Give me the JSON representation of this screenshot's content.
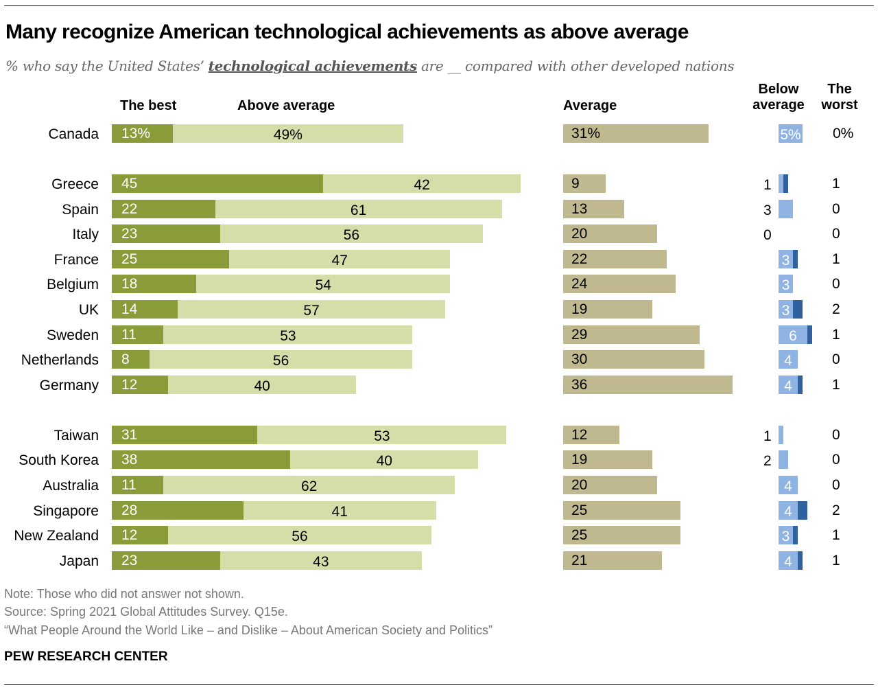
{
  "title": "Many recognize American technological achievements as above average",
  "subtitle": {
    "prefix": "% who say the United States’ ",
    "emphasis": "technological achievements",
    "suffix": " are __ compared with other developed nations"
  },
  "colors": {
    "best": "#8a9c3a",
    "above": "#d5dea8",
    "average": "#c0b98f",
    "below": "#8fb4e3",
    "worst": "#2e619d"
  },
  "chart_data": {
    "type": "bar",
    "stacked": true,
    "columns": [
      "The best",
      "Above average",
      "Average",
      "Below average",
      "The worst"
    ],
    "header_labels": {
      "best": "The best",
      "above": "Above average",
      "average": "Average",
      "below": "Below average",
      "worst": "The worst"
    },
    "rows": [
      {
        "country": "Canada",
        "best": 13,
        "above": 49,
        "average": 31,
        "below": 5,
        "worst": 0,
        "group": 1,
        "labels": {
          "best": "13%",
          "above": "49%",
          "average": "31%",
          "below": "5%",
          "worst": "0%"
        }
      },
      {
        "country": "Greece",
        "best": 45,
        "above": 42,
        "average": 9,
        "below": 1,
        "worst": 1,
        "group": 2
      },
      {
        "country": "Spain",
        "best": 22,
        "above": 61,
        "average": 13,
        "below": 3,
        "worst": 0,
        "group": 2,
        "below_outside": true
      },
      {
        "country": "Italy",
        "best": 23,
        "above": 56,
        "average": 20,
        "below": 0,
        "worst": 0,
        "group": 2
      },
      {
        "country": "France",
        "best": 25,
        "above": 47,
        "average": 22,
        "below": 3,
        "worst": 1,
        "group": 2
      },
      {
        "country": "Belgium",
        "best": 18,
        "above": 54,
        "average": 24,
        "below": 3,
        "worst": 0,
        "group": 2
      },
      {
        "country": "UK",
        "best": 14,
        "above": 57,
        "average": 19,
        "below": 3,
        "worst": 2,
        "group": 2
      },
      {
        "country": "Sweden",
        "best": 11,
        "above": 53,
        "average": 29,
        "below": 6,
        "worst": 1,
        "group": 2
      },
      {
        "country": "Netherlands",
        "best": 8,
        "above": 56,
        "average": 30,
        "below": 4,
        "worst": 0,
        "group": 2
      },
      {
        "country": "Germany",
        "best": 12,
        "above": 40,
        "average": 36,
        "below": 4,
        "worst": 1,
        "group": 2
      },
      {
        "country": "Taiwan",
        "best": 31,
        "above": 53,
        "average": 12,
        "below": 1,
        "worst": 0,
        "group": 3
      },
      {
        "country": "South Korea",
        "best": 38,
        "above": 40,
        "average": 19,
        "below": 2,
        "worst": 0,
        "group": 3
      },
      {
        "country": "Australia",
        "best": 11,
        "above": 62,
        "average": 20,
        "below": 4,
        "worst": 0,
        "group": 3
      },
      {
        "country": "Singapore",
        "best": 28,
        "above": 41,
        "average": 25,
        "below": 4,
        "worst": 2,
        "group": 3
      },
      {
        "country": "New Zealand",
        "best": 12,
        "above": 56,
        "average": 25,
        "below": 3,
        "worst": 1,
        "group": 3
      },
      {
        "country": "Japan",
        "best": 23,
        "above": 43,
        "average": 21,
        "below": 4,
        "worst": 1,
        "group": 3
      }
    ]
  },
  "notes": {
    "note": "Note: Those who did not answer not shown.",
    "source": "Source: Spring 2021 Global Attitudes Survey. Q15e.",
    "report": "“What People Around the World Like – and Dislike – About American Society and Politics”"
  },
  "brand": "PEW RESEARCH CENTER"
}
